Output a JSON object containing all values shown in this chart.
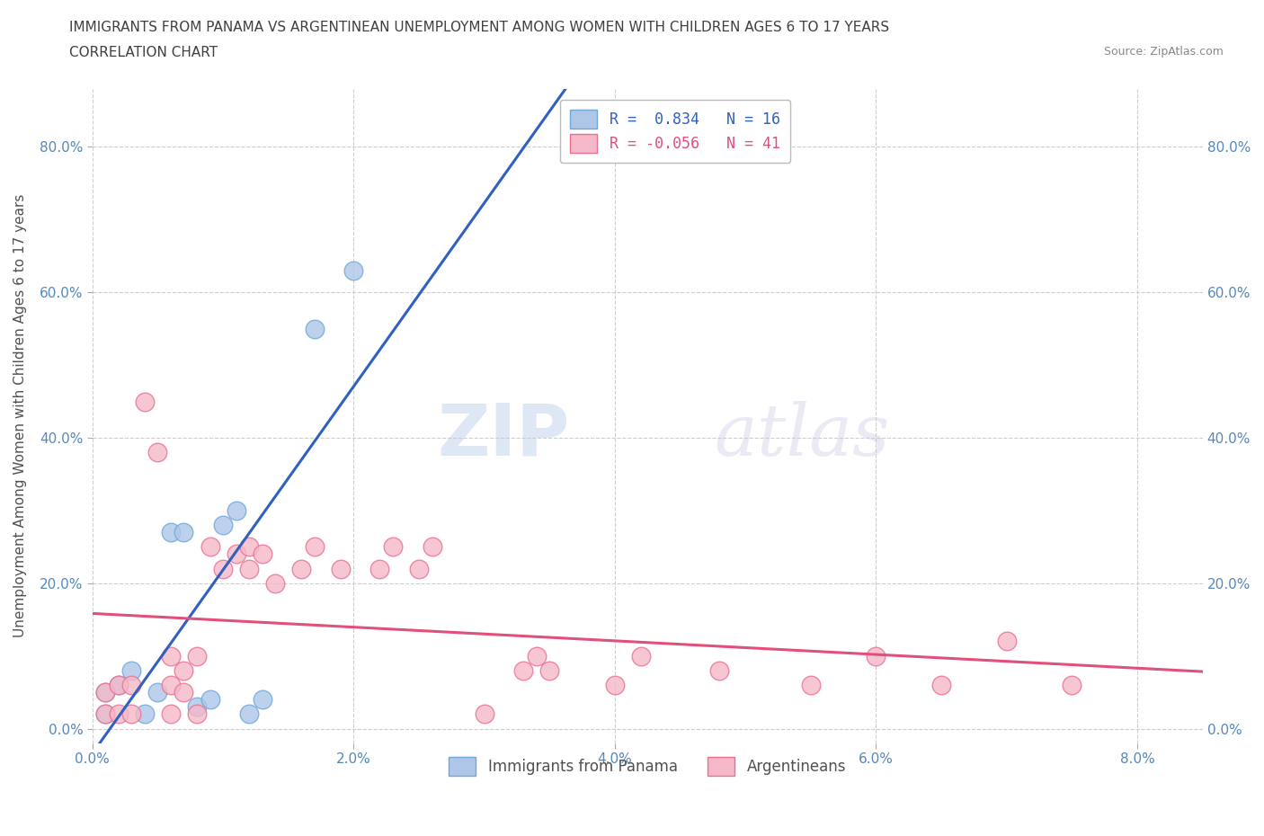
{
  "title_line1": "IMMIGRANTS FROM PANAMA VS ARGENTINEAN UNEMPLOYMENT AMONG WOMEN WITH CHILDREN AGES 6 TO 17 YEARS",
  "title_line2": "CORRELATION CHART",
  "source_text": "Source: ZipAtlas.com",
  "ylabel": "Unemployment Among Women with Children Ages 6 to 17 years",
  "xlim": [
    0.0,
    0.085
  ],
  "ylim": [
    -0.02,
    0.88
  ],
  "xticks": [
    0.0,
    0.02,
    0.04,
    0.06,
    0.08
  ],
  "xtick_labels": [
    "0.0%",
    "2.0%",
    "4.0%",
    "6.0%",
    "8.0%"
  ],
  "yticks": [
    0.0,
    0.2,
    0.4,
    0.6,
    0.8
  ],
  "ytick_labels": [
    "0.0%",
    "20.0%",
    "40.0%",
    "60.0%",
    "80.0%"
  ],
  "panama_color": "#aec6e8",
  "argentina_color": "#f5b8c8",
  "panama_edge": "#6fa8d4",
  "argentina_edge": "#e87090",
  "R_panama": 0.834,
  "N_panama": 16,
  "R_argentina": -0.056,
  "N_argentina": 41,
  "line_panama_color": "#3060c0",
  "line_argentina_color": "#e0507a",
  "watermark_zip": "ZIP",
  "watermark_atlas": "atlas",
  "legend_panama": "Immigrants from Panama",
  "legend_argentina": "Argentineans",
  "panama_x": [
    0.001,
    0.001,
    0.002,
    0.003,
    0.004,
    0.005,
    0.006,
    0.007,
    0.008,
    0.009,
    0.01,
    0.011,
    0.012,
    0.013,
    0.017,
    0.02
  ],
  "panama_y": [
    0.02,
    0.05,
    0.06,
    0.08,
    0.02,
    0.05,
    0.27,
    0.27,
    0.03,
    0.04,
    0.28,
    0.3,
    0.02,
    0.04,
    0.55,
    0.63
  ],
  "argentina_x": [
    0.001,
    0.001,
    0.002,
    0.002,
    0.003,
    0.003,
    0.004,
    0.005,
    0.006,
    0.006,
    0.006,
    0.007,
    0.007,
    0.008,
    0.008,
    0.009,
    0.01,
    0.011,
    0.012,
    0.012,
    0.013,
    0.014,
    0.016,
    0.017,
    0.019,
    0.022,
    0.023,
    0.025,
    0.026,
    0.03,
    0.033,
    0.034,
    0.035,
    0.04,
    0.042,
    0.048,
    0.055,
    0.06,
    0.065,
    0.07,
    0.075
  ],
  "argentina_y": [
    0.02,
    0.05,
    0.02,
    0.06,
    0.02,
    0.06,
    0.45,
    0.38,
    0.02,
    0.06,
    0.1,
    0.05,
    0.08,
    0.02,
    0.1,
    0.25,
    0.22,
    0.24,
    0.22,
    0.25,
    0.24,
    0.2,
    0.22,
    0.25,
    0.22,
    0.22,
    0.25,
    0.22,
    0.25,
    0.02,
    0.08,
    0.1,
    0.08,
    0.06,
    0.1,
    0.08,
    0.06,
    0.1,
    0.06,
    0.12,
    0.06
  ],
  "background_color": "#ffffff",
  "grid_color": "#c8c8c8",
  "title_color": "#404040",
  "axis_label_color": "#505050",
  "tick_color": "#5588bb"
}
